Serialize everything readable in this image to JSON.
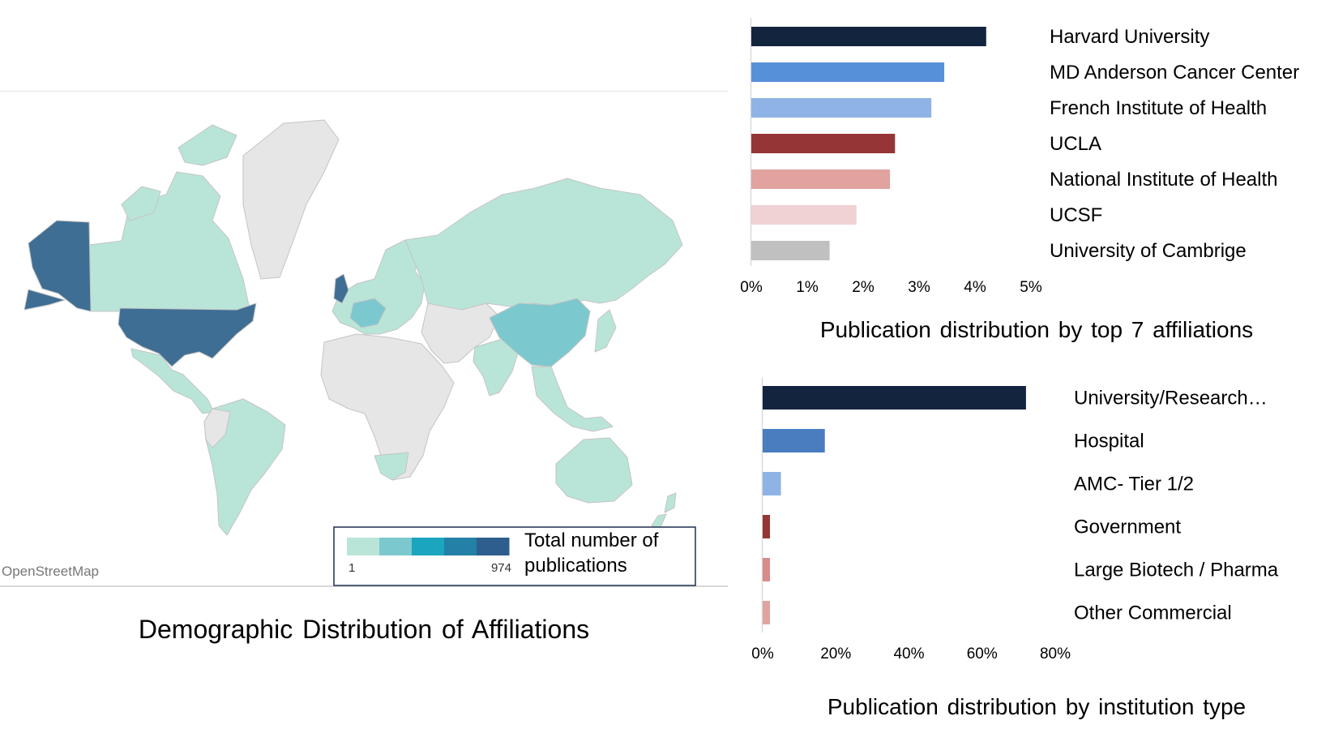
{
  "map": {
    "caption": "Demographic Distribution of Affiliations",
    "credit": "OpenStreetMap",
    "legend": {
      "title_line1": "Total number of",
      "title_line2": "publications",
      "min": "1",
      "max": "974",
      "colors": [
        "#b9e5d9",
        "#7cc8cf",
        "#1ba5be",
        "#2380a6",
        "#2d5e8e"
      ]
    },
    "colors": {
      "land": "#e6e6e6",
      "border": "#c4c4c4",
      "low": "#b9e5d9",
      "mid": "#7cc8cf",
      "high": "#3f6e94",
      "sea": "#ffffff"
    }
  },
  "chart_data": [
    {
      "type": "bar",
      "orientation": "horizontal",
      "title": "Publication distribution by top 7 affiliations",
      "categories": [
        "Harvard University",
        "MD Anderson Cancer Center",
        "French Institute of Health",
        "UCLA",
        "National Institute of Health",
        "UCSF",
        "University of Cambrige"
      ],
      "values": [
        4.2,
        3.45,
        3.22,
        2.57,
        2.48,
        1.88,
        1.4
      ],
      "colors": [
        "#13243f",
        "#5690d8",
        "#8fb3e5",
        "#963535",
        "#e0a3a0",
        "#f0d2d4",
        "#c0c0c0"
      ],
      "xlim": [
        0,
        5
      ],
      "xticks": [
        "0%",
        "1%",
        "2%",
        "3%",
        "4%",
        "5%"
      ],
      "unit": "%",
      "grid": false
    },
    {
      "type": "bar",
      "orientation": "horizontal",
      "title": "Publication distribution by institution type",
      "categories": [
        "University/Research…",
        "Hospital",
        "AMC- Tier 1/2",
        "Government",
        "Large Biotech / Pharma",
        "Other Commercial"
      ],
      "values": [
        72,
        17,
        5,
        2,
        2,
        2
      ],
      "colors": [
        "#13243f",
        "#4a7cc0",
        "#8fb3e5",
        "#963535",
        "#d88b8b",
        "#e0a3a0"
      ],
      "xlim": [
        0,
        80
      ],
      "xticks": [
        "0%",
        "20%",
        "40%",
        "60%",
        "80%"
      ],
      "unit": "%",
      "grid": false
    }
  ]
}
